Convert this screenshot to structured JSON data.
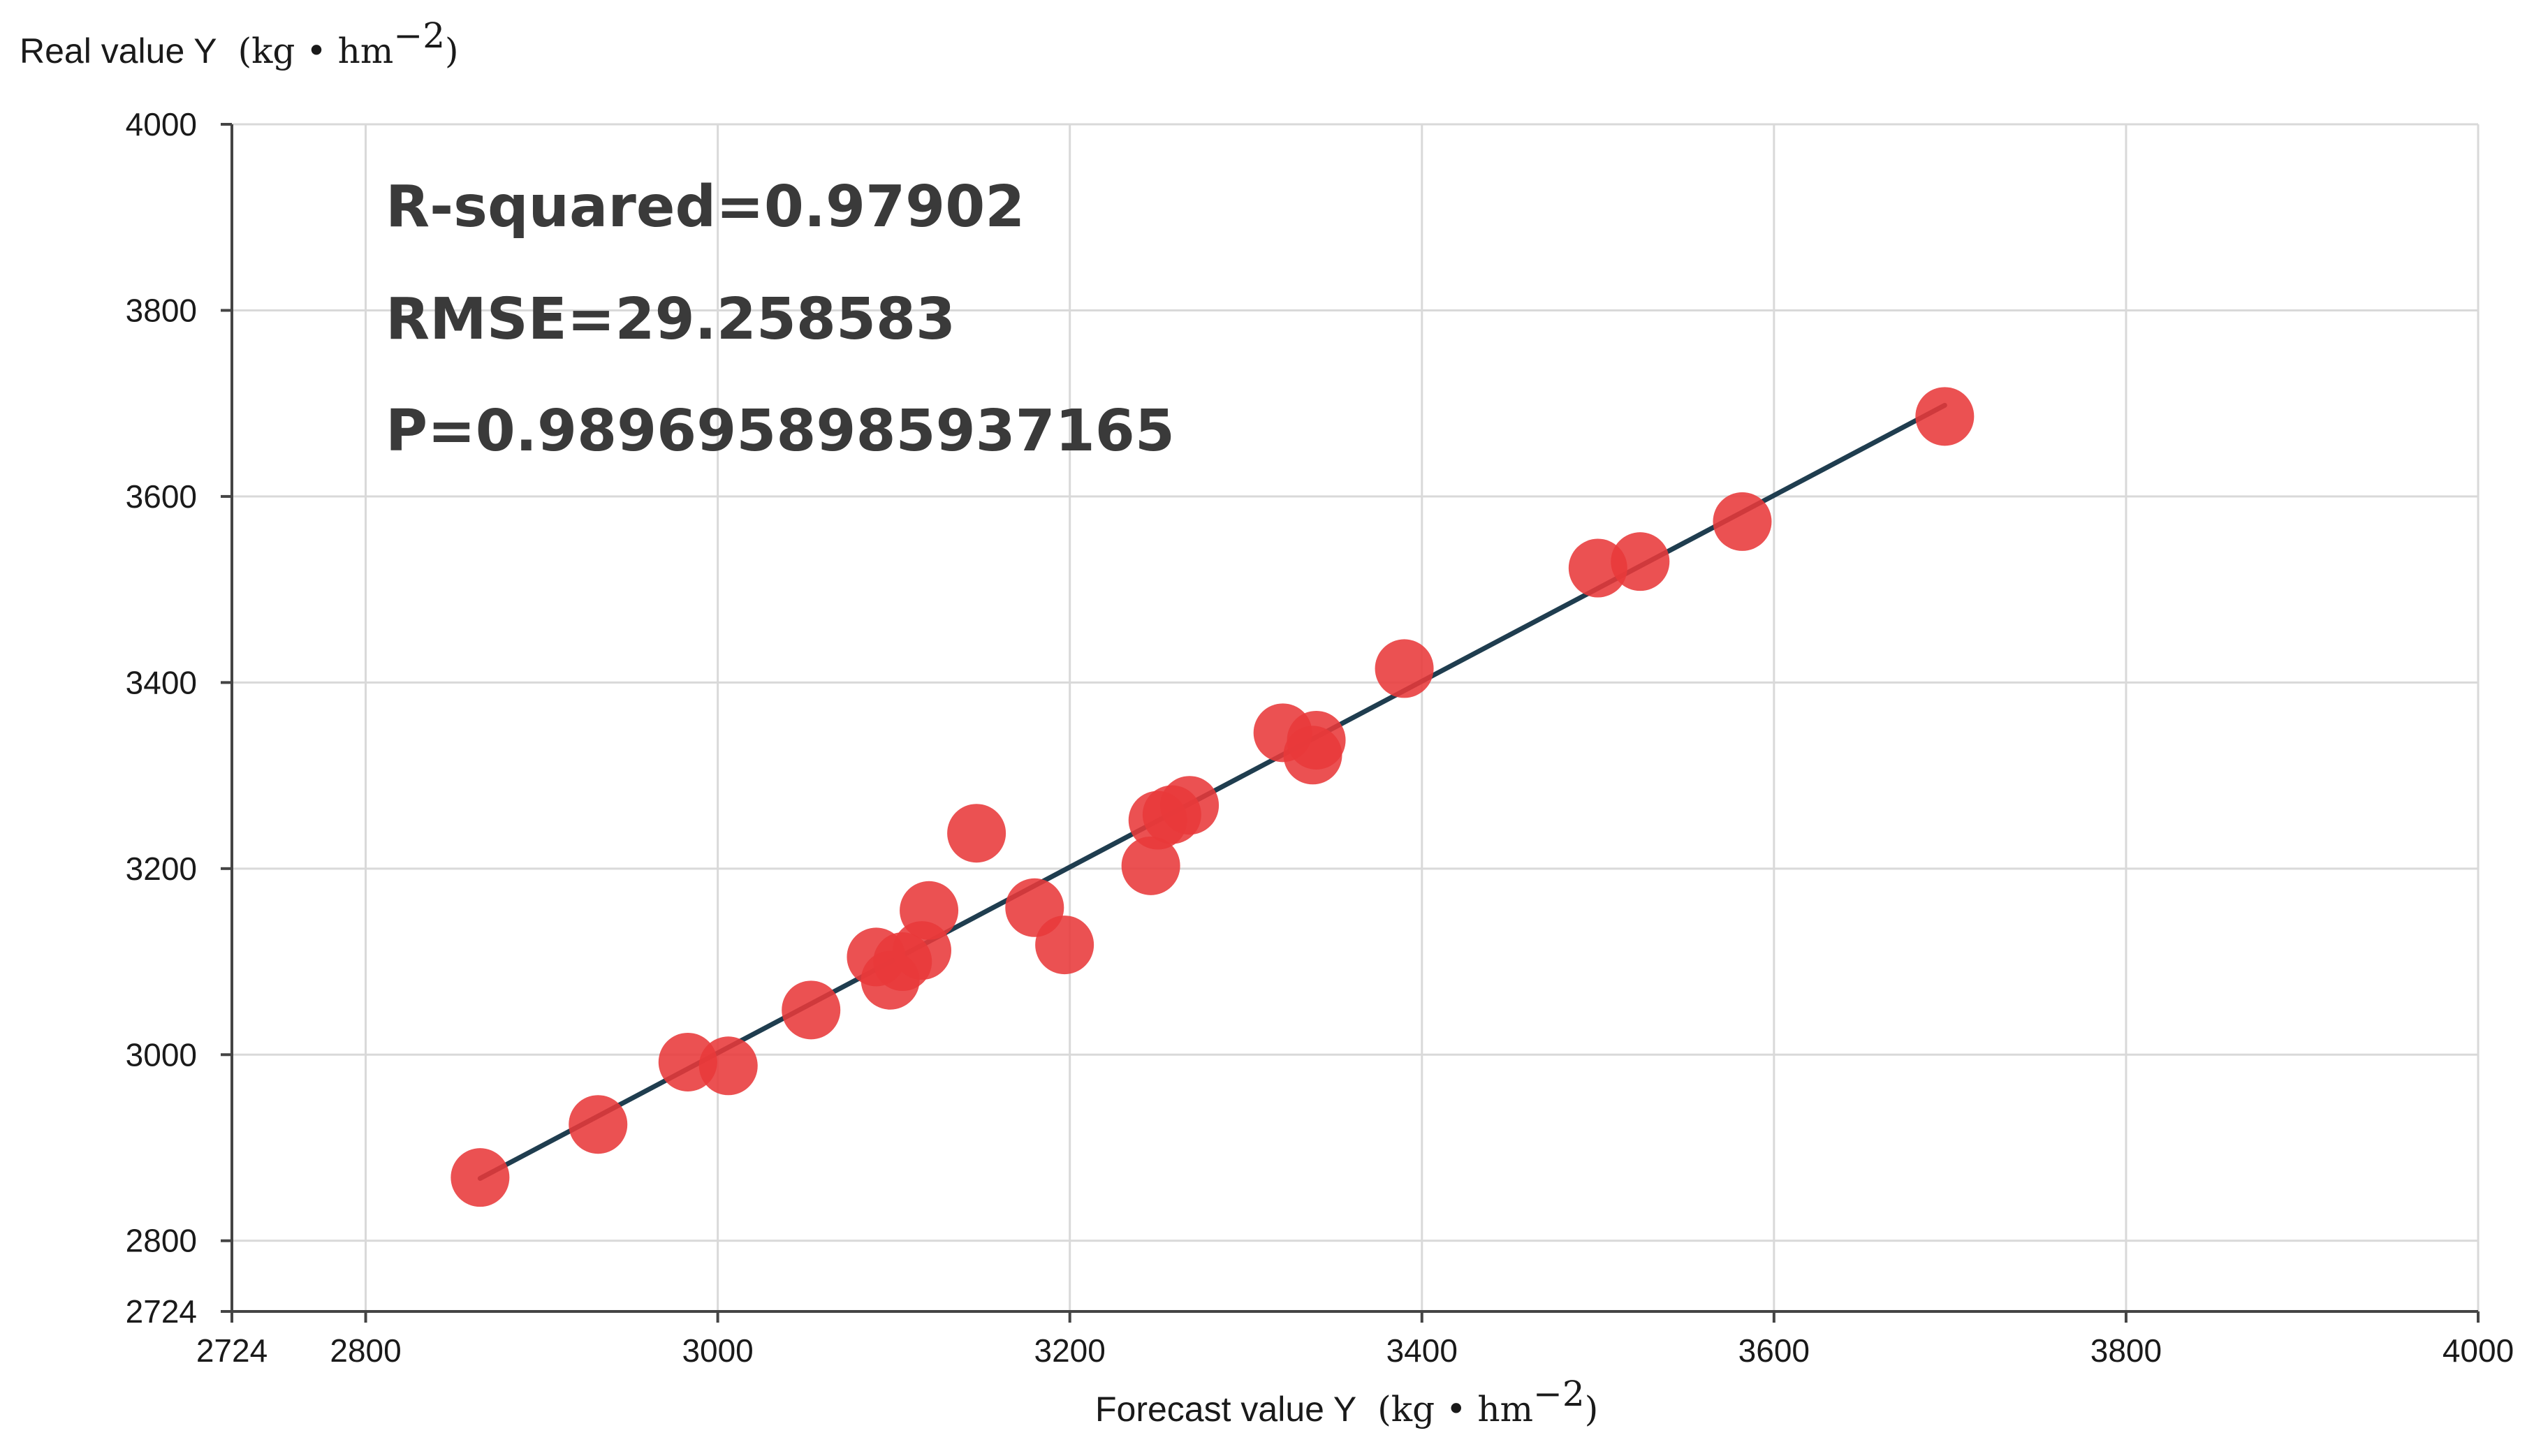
{
  "chart_data": {
    "type": "scatter",
    "xlabel": "Forecast value Y",
    "ylabel": "Real value Y",
    "unit": {
      "base": "(kg • hm",
      "exp": "−2",
      "close": ")"
    },
    "xlim": [
      2724,
      4000
    ],
    "ylim": [
      2724,
      4000
    ],
    "xticks": [
      "2724",
      "2800",
      "3000",
      "3200",
      "3400",
      "3600",
      "3800",
      "4000"
    ],
    "yticks": [
      "2724",
      "2800",
      "3000",
      "3200",
      "3400",
      "3600",
      "3800",
      "4000"
    ],
    "grid": true,
    "annotations": [
      "R-squared=0.97902",
      "RMSE=29.258583",
      "P=0.9896958985937165"
    ],
    "fit_line": {
      "x": [
        2865,
        3697
      ],
      "y": [
        2867,
        3698
      ],
      "color": "#1f3d4f"
    },
    "point_color": "#e8393a",
    "points": [
      {
        "x": 2865,
        "y": 2868
      },
      {
        "x": 2932,
        "y": 2925
      },
      {
        "x": 2983,
        "y": 2992
      },
      {
        "x": 3006,
        "y": 2988
      },
      {
        "x": 3053,
        "y": 3048
      },
      {
        "x": 3090,
        "y": 3105
      },
      {
        "x": 3098,
        "y": 3080
      },
      {
        "x": 3105,
        "y": 3100
      },
      {
        "x": 3116,
        "y": 3112
      },
      {
        "x": 3120,
        "y": 3155
      },
      {
        "x": 3147,
        "y": 3238
      },
      {
        "x": 3180,
        "y": 3158
      },
      {
        "x": 3197,
        "y": 3118
      },
      {
        "x": 3246,
        "y": 3203
      },
      {
        "x": 3250,
        "y": 3252
      },
      {
        "x": 3258,
        "y": 3258
      },
      {
        "x": 3268,
        "y": 3268
      },
      {
        "x": 3321,
        "y": 3346
      },
      {
        "x": 3338,
        "y": 3322
      },
      {
        "x": 3340,
        "y": 3338
      },
      {
        "x": 3390,
        "y": 3415
      },
      {
        "x": 3500,
        "y": 3523
      },
      {
        "x": 3524,
        "y": 3530
      },
      {
        "x": 3582,
        "y": 3573
      },
      {
        "x": 3697,
        "y": 3686
      }
    ]
  }
}
